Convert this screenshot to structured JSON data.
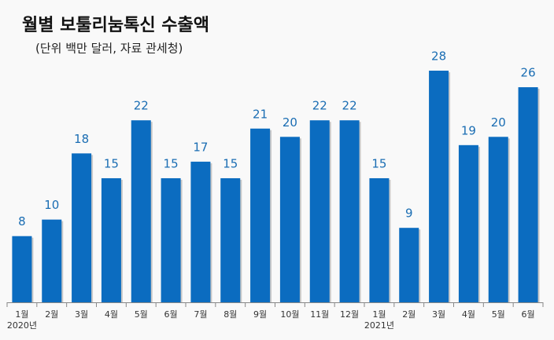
{
  "chart_data": {
    "type": "bar",
    "title": "월별 보툴리눔톡신 수출액",
    "subtitle": "(단위 백만 달러, 자료 관세청)",
    "categories": [
      "1월",
      "2월",
      "3월",
      "4월",
      "5월",
      "6월",
      "7월",
      "8월",
      "9월",
      "10월",
      "11월",
      "12월",
      "1월",
      "2월",
      "3월",
      "4월",
      "5월",
      "6월"
    ],
    "category_groups": [
      "2020년",
      null,
      null,
      null,
      null,
      null,
      null,
      null,
      null,
      null,
      null,
      null,
      "2021년",
      null,
      null,
      null,
      null,
      null
    ],
    "values": [
      8,
      10,
      18,
      15,
      22,
      15,
      17,
      15,
      21,
      20,
      22,
      22,
      15,
      9,
      28,
      19,
      20,
      26
    ],
    "color": "#0b6cc0"
  }
}
